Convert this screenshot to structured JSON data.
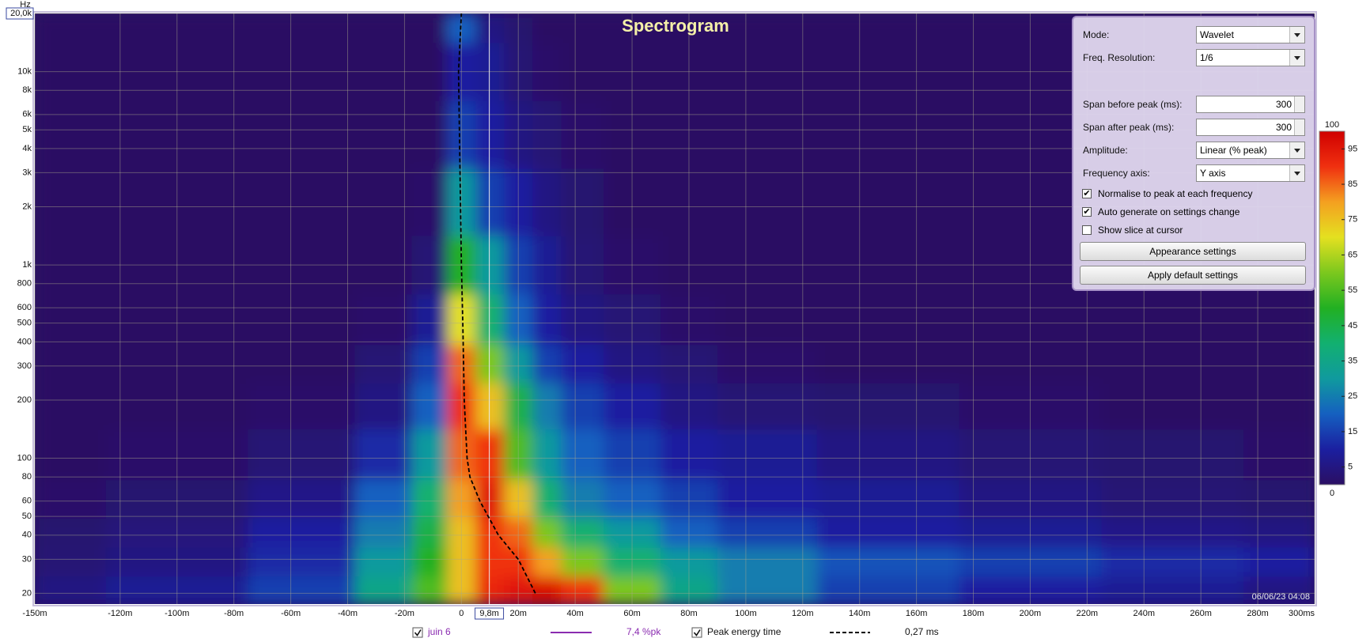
{
  "chart_data": {
    "type": "heatmap",
    "title": "Spectrogram",
    "y_unit": "Hz",
    "xlim": [
      -150,
      300
    ],
    "ylim": [
      17.6,
      20000
    ],
    "log_y": true,
    "grid": true,
    "xticks": [
      {
        "value": -150,
        "label": "-150m"
      },
      {
        "value": -120,
        "label": "-120m"
      },
      {
        "value": -100,
        "label": "-100m"
      },
      {
        "value": -80,
        "label": "-80m"
      },
      {
        "value": -60,
        "label": "-60m"
      },
      {
        "value": -40,
        "label": "-40m"
      },
      {
        "value": -20,
        "label": "-20m"
      },
      0,
      {
        "value": 20,
        "label": "20m"
      },
      {
        "value": 40,
        "label": "40m"
      },
      {
        "value": 60,
        "label": "60m"
      },
      {
        "value": 80,
        "label": "80m"
      },
      {
        "value": 100,
        "label": "100m"
      },
      {
        "value": 120,
        "label": "120m"
      },
      {
        "value": 140,
        "label": "140m"
      },
      {
        "value": 160,
        "label": "160m"
      },
      {
        "value": 180,
        "label": "180m"
      },
      {
        "value": 200,
        "label": "200m"
      },
      {
        "value": 220,
        "label": "220m"
      },
      {
        "value": 240,
        "label": "240m"
      },
      {
        "value": 260,
        "label": "260m"
      },
      {
        "value": 280,
        "label": "280m"
      },
      {
        "value": 300,
        "label": "300ms"
      }
    ],
    "yticks": [
      20,
      30,
      40,
      50,
      60,
      80,
      100,
      200,
      300,
      400,
      500,
      600,
      800,
      {
        "value": 1000,
        "label": "1k"
      },
      {
        "value": 2000,
        "label": "2k"
      },
      {
        "value": 3000,
        "label": "3k"
      },
      {
        "value": 4000,
        "label": "4k"
      },
      {
        "value": 5000,
        "label": "5k"
      },
      {
        "value": 6000,
        "label": "6k"
      },
      {
        "value": 8000,
        "label": "8k"
      },
      {
        "value": 10000,
        "label": "10k"
      },
      {
        "value": 20000,
        "label": "20,0k"
      }
    ],
    "x": [
      -150,
      -100,
      -50,
      -25,
      -10,
      0,
      10,
      20,
      30,
      40,
      60,
      80,
      100,
      150,
      200,
      250,
      300
    ],
    "y": [
      20,
      30,
      40,
      60,
      100,
      200,
      300,
      500,
      1000,
      2000,
      5000,
      10000,
      20000
    ],
    "z": [
      [
        5,
        8,
        15,
        35,
        55,
        75,
        92,
        95,
        97,
        90,
        60,
        35,
        25,
        15,
        10,
        8,
        5
      ],
      [
        3,
        5,
        12,
        30,
        50,
        75,
        90,
        90,
        80,
        60,
        40,
        30,
        25,
        18,
        15,
        12,
        10
      ],
      [
        2,
        4,
        10,
        25,
        45,
        75,
        90,
        85,
        60,
        40,
        30,
        20,
        15,
        10,
        8,
        6,
        5
      ],
      [
        1,
        2,
        6,
        20,
        40,
        80,
        95,
        75,
        40,
        25,
        20,
        15,
        10,
        8,
        5,
        3,
        2
      ],
      [
        0,
        1,
        3,
        12,
        30,
        85,
        90,
        55,
        30,
        20,
        15,
        10,
        8,
        5,
        3,
        2,
        1
      ],
      [
        0,
        0,
        1,
        5,
        20,
        90,
        75,
        45,
        25,
        15,
        10,
        5,
        3,
        2,
        1,
        0,
        0
      ],
      [
        0,
        0,
        0,
        3,
        15,
        85,
        60,
        30,
        15,
        10,
        5,
        3,
        1,
        0,
        0,
        0,
        0
      ],
      [
        0,
        0,
        0,
        1,
        8,
        70,
        40,
        20,
        10,
        5,
        3,
        1,
        0,
        0,
        0,
        0,
        0
      ],
      [
        0,
        0,
        0,
        0,
        3,
        50,
        30,
        15,
        8,
        3,
        1,
        0,
        0,
        0,
        0,
        0,
        0
      ],
      [
        0,
        0,
        0,
        0,
        1,
        30,
        15,
        10,
        5,
        2,
        0,
        0,
        0,
        0,
        0,
        0,
        0
      ],
      [
        0,
        0,
        0,
        0,
        0,
        15,
        10,
        5,
        3,
        1,
        0,
        0,
        0,
        0,
        0,
        0,
        0
      ],
      [
        0,
        0,
        0,
        0,
        0,
        10,
        8,
        3,
        1,
        0,
        0,
        0,
        0,
        0,
        0,
        0,
        0
      ],
      [
        0,
        0,
        0,
        0,
        0,
        20,
        5,
        2,
        0,
        0,
        0,
        0,
        0,
        0,
        0,
        0,
        0
      ]
    ],
    "colorscale": [
      [
        0,
        "#2b0f63"
      ],
      [
        10,
        "#1b1fa0"
      ],
      [
        20,
        "#1560c0"
      ],
      [
        30,
        "#109a9e"
      ],
      [
        40,
        "#12b070"
      ],
      [
        50,
        "#22b022"
      ],
      [
        60,
        "#7cc81e"
      ],
      [
        70,
        "#e4e020"
      ],
      [
        80,
        "#f4a020"
      ],
      [
        90,
        "#f03010"
      ],
      [
        100,
        "#d00000"
      ]
    ],
    "colorbar_ticks": [
      0,
      5,
      15,
      25,
      35,
      45,
      55,
      65,
      75,
      85,
      95,
      100
    ],
    "cursor": {
      "value": 9.8,
      "label": "9,8m"
    },
    "peak_energy": {
      "name": "Peak energy time",
      "readout": "0,27 ms",
      "color": "#000000",
      "checked": true,
      "x": [
        26,
        20,
        13,
        6.5,
        3,
        2,
        1,
        0.5,
        0,
        -1,
        0
      ],
      "y": [
        20,
        30,
        40,
        60,
        80,
        100,
        200,
        500,
        1000,
        10000,
        20000
      ]
    },
    "measurement": {
      "name": "juin 6",
      "readout": "7,4 %pk",
      "color": "#8a2bb0",
      "checked": true
    },
    "timestamp": "06/06/23 04:08"
  },
  "controls": {
    "fields": [
      {
        "label": "Mode:",
        "value": "Wavelet"
      },
      {
        "label": "Freq. Resolution:",
        "value": "1/6"
      },
      {
        "label": "Span before peak (ms):",
        "value": 300
      },
      {
        "label": "Span after peak (ms):",
        "value": 300
      },
      {
        "label": "Amplitude:",
        "value": "Linear (% peak)"
      },
      {
        "label": "Frequency axis:",
        "value": "Y axis"
      }
    ],
    "checkboxes": [
      {
        "label": "Normalise to peak at each frequency",
        "checked": true
      },
      {
        "label": "Auto generate on settings change",
        "checked": true
      },
      {
        "label": "Show slice at cursor",
        "checked": false
      }
    ],
    "buttons": [
      "Appearance settings",
      "Apply default settings"
    ]
  }
}
